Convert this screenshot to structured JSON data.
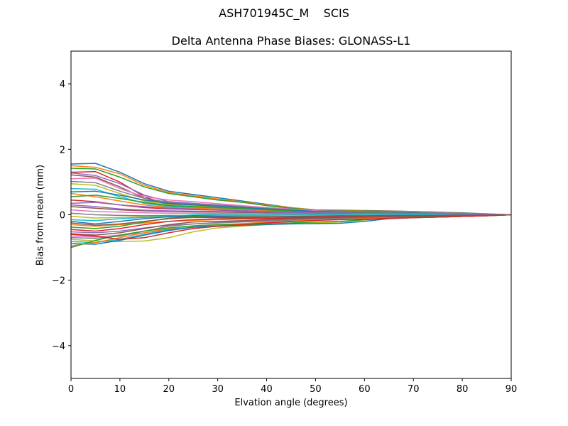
{
  "chart_data": {
    "type": "line",
    "suptitle": "ASH701945C_M    SCIS",
    "title": "Delta Antenna Phase Biases: GLONASS-L1",
    "xlabel": "Elvation angle (degrees)",
    "ylabel": "Bias from mean (mm)",
    "xlim": [
      0,
      90
    ],
    "ylim": [
      -5,
      5
    ],
    "xticks": [
      0,
      10,
      20,
      30,
      40,
      50,
      60,
      70,
      80,
      90
    ],
    "yticks": [
      -4,
      -2,
      0,
      2,
      4
    ],
    "ytick_labels": [
      "−4",
      "−2",
      "0",
      "2",
      "4"
    ],
    "grid": false,
    "legend": "none",
    "colors": [
      "#1f77b4",
      "#ff7f0e",
      "#2ca02c",
      "#d62728",
      "#9467bd",
      "#8c564b",
      "#e377c2",
      "#7f7f7f",
      "#bcbd22",
      "#17becf"
    ],
    "x": [
      0,
      5,
      10,
      15,
      20,
      25,
      30,
      35,
      40,
      45,
      50,
      55,
      60,
      65,
      70,
      75,
      80,
      85,
      90
    ],
    "series": [
      {
        "values": [
          1.55,
          1.57,
          1.3,
          0.95,
          0.72,
          0.62,
          0.52,
          0.42,
          0.32,
          0.22,
          0.15,
          0.14,
          0.13,
          0.12,
          0.1,
          0.08,
          0.06,
          0.03,
          0.0
        ]
      },
      {
        "values": [
          1.5,
          1.45,
          1.25,
          0.9,
          0.68,
          0.58,
          0.48,
          0.4,
          0.3,
          0.22,
          0.14,
          0.13,
          0.12,
          0.11,
          0.1,
          0.08,
          0.05,
          0.03,
          0.0
        ]
      },
      {
        "values": [
          1.42,
          1.4,
          1.15,
          0.85,
          0.65,
          0.55,
          0.45,
          0.38,
          0.28,
          0.2,
          0.13,
          0.12,
          0.11,
          0.1,
          0.09,
          0.07,
          0.05,
          0.02,
          0.0
        ]
      },
      {
        "values": [
          1.3,
          1.32,
          1.0,
          0.55,
          0.3,
          0.28,
          0.26,
          0.24,
          0.2,
          0.16,
          0.12,
          0.1,
          0.09,
          0.08,
          0.07,
          0.06,
          0.04,
          0.02,
          0.0
        ]
      },
      {
        "values": [
          1.28,
          1.2,
          0.95,
          0.6,
          0.4,
          0.35,
          0.3,
          0.26,
          0.22,
          0.18,
          0.12,
          0.11,
          0.1,
          0.09,
          0.08,
          0.06,
          0.04,
          0.02,
          0.0
        ]
      },
      {
        "values": [
          1.22,
          1.15,
          0.85,
          0.5,
          0.32,
          0.28,
          0.25,
          0.22,
          0.18,
          0.15,
          0.1,
          0.09,
          0.08,
          0.08,
          0.07,
          0.05,
          0.04,
          0.02,
          0.0
        ]
      },
      {
        "values": [
          1.1,
          1.12,
          0.8,
          0.55,
          0.45,
          0.4,
          0.34,
          0.28,
          0.22,
          0.17,
          0.12,
          0.1,
          0.09,
          0.08,
          0.07,
          0.06,
          0.04,
          0.02,
          0.0
        ]
      },
      {
        "values": [
          1.02,
          0.98,
          0.72,
          0.5,
          0.38,
          0.32,
          0.28,
          0.24,
          0.2,
          0.15,
          0.1,
          0.09,
          0.08,
          0.07,
          0.06,
          0.05,
          0.03,
          0.02,
          0.0
        ]
      },
      {
        "values": [
          0.95,
          0.9,
          0.65,
          0.42,
          0.3,
          0.27,
          0.24,
          0.2,
          0.17,
          0.13,
          0.09,
          0.08,
          0.07,
          0.07,
          0.06,
          0.05,
          0.03,
          0.02,
          0.0
        ]
      },
      {
        "values": [
          0.8,
          0.78,
          0.55,
          0.35,
          0.25,
          0.22,
          0.2,
          0.18,
          0.15,
          0.12,
          0.08,
          0.07,
          0.06,
          0.06,
          0.05,
          0.04,
          0.03,
          0.01,
          0.0
        ]
      },
      {
        "values": [
          0.7,
          0.72,
          0.6,
          0.45,
          0.35,
          0.3,
          0.26,
          0.22,
          0.18,
          0.14,
          0.1,
          0.09,
          0.08,
          0.07,
          0.06,
          0.05,
          0.03,
          0.02,
          0.0
        ]
      },
      {
        "values": [
          0.65,
          0.55,
          0.42,
          0.3,
          0.22,
          0.2,
          0.18,
          0.16,
          0.13,
          0.1,
          0.07,
          0.06,
          0.06,
          0.05,
          0.05,
          0.04,
          0.02,
          0.01,
          0.0
        ]
      },
      {
        "values": [
          0.55,
          0.6,
          0.5,
          0.38,
          0.28,
          0.25,
          0.22,
          0.19,
          0.15,
          0.12,
          0.08,
          0.07,
          0.07,
          0.06,
          0.05,
          0.04,
          0.03,
          0.01,
          0.0
        ]
      },
      {
        "values": [
          0.45,
          0.4,
          0.3,
          0.22,
          0.18,
          0.16,
          0.14,
          0.12,
          0.1,
          0.08,
          0.06,
          0.05,
          0.05,
          0.04,
          0.04,
          0.03,
          0.02,
          0.01,
          0.0
        ]
      },
      {
        "values": [
          0.35,
          0.38,
          0.3,
          0.25,
          0.2,
          0.18,
          0.15,
          0.13,
          0.1,
          0.08,
          0.05,
          0.05,
          0.04,
          0.04,
          0.03,
          0.03,
          0.02,
          0.01,
          0.0
        ]
      },
      {
        "values": [
          0.25,
          0.2,
          0.15,
          0.12,
          0.1,
          0.09,
          0.08,
          0.07,
          0.06,
          0.05,
          0.04,
          0.04,
          0.03,
          0.03,
          0.03,
          0.02,
          0.02,
          0.01,
          0.0
        ]
      },
      {
        "values": [
          0.15,
          0.1,
          0.08,
          0.06,
          0.05,
          0.05,
          0.04,
          0.04,
          0.03,
          0.03,
          0.02,
          0.02,
          0.02,
          0.02,
          0.02,
          0.01,
          0.01,
          0.0,
          0.0
        ]
      },
      {
        "values": [
          0.05,
          0.0,
          -0.02,
          -0.03,
          -0.02,
          -0.02,
          -0.02,
          -0.02,
          -0.02,
          -0.01,
          -0.01,
          -0.01,
          -0.01,
          -0.01,
          -0.01,
          -0.01,
          0.0,
          0.0,
          0.0
        ]
      },
      {
        "values": [
          -0.05,
          -0.1,
          -0.08,
          -0.06,
          -0.05,
          -0.05,
          -0.04,
          -0.04,
          -0.04,
          -0.03,
          -0.03,
          -0.03,
          -0.02,
          -0.02,
          -0.02,
          -0.02,
          -0.01,
          -0.01,
          0.0
        ]
      },
      {
        "values": [
          -0.15,
          -0.18,
          -0.12,
          -0.08,
          -0.05,
          0.0,
          0.02,
          0.02,
          0.02,
          0.02,
          0.01,
          0.01,
          0.01,
          0.01,
          0.01,
          0.0,
          0.0,
          0.0,
          0.0
        ]
      },
      {
        "values": [
          -0.2,
          -0.28,
          -0.2,
          -0.12,
          -0.06,
          -0.03,
          -0.05,
          -0.06,
          -0.06,
          -0.05,
          -0.04,
          -0.03,
          -0.03,
          -0.02,
          -0.02,
          -0.02,
          -0.01,
          -0.01,
          0.0
        ]
      },
      {
        "values": [
          -0.3,
          -0.35,
          -0.3,
          -0.25,
          -0.2,
          -0.17,
          -0.15,
          -0.13,
          -0.11,
          -0.09,
          -0.07,
          -0.06,
          -0.05,
          -0.05,
          -0.04,
          -0.03,
          -0.02,
          -0.01,
          0.0
        ]
      },
      {
        "values": [
          -0.38,
          -0.42,
          -0.35,
          -0.22,
          -0.1,
          -0.05,
          -0.08,
          -0.1,
          -0.1,
          -0.09,
          -0.07,
          -0.06,
          -0.05,
          -0.05,
          -0.04,
          -0.03,
          -0.02,
          -0.01,
          0.0
        ]
      },
      {
        "values": [
          -0.45,
          -0.5,
          -0.42,
          -0.3,
          -0.2,
          -0.15,
          -0.12,
          -0.12,
          -0.11,
          -0.1,
          -0.08,
          -0.07,
          -0.06,
          -0.05,
          -0.04,
          -0.03,
          -0.02,
          -0.01,
          0.0
        ]
      },
      {
        "values": [
          -0.52,
          -0.55,
          -0.5,
          -0.4,
          -0.32,
          -0.28,
          -0.24,
          -0.2,
          -0.17,
          -0.14,
          -0.11,
          -0.1,
          -0.09,
          -0.08,
          -0.07,
          -0.05,
          -0.04,
          -0.02,
          0.0
        ]
      },
      {
        "values": [
          -0.58,
          -0.62,
          -0.55,
          -0.42,
          -0.3,
          -0.22,
          -0.2,
          -0.18,
          -0.15,
          -0.12,
          -0.1,
          -0.1,
          -0.09,
          -0.08,
          -0.07,
          -0.05,
          -0.04,
          -0.02,
          0.0
        ]
      },
      {
        "values": [
          -0.65,
          -0.68,
          -0.62,
          -0.55,
          -0.45,
          -0.38,
          -0.32,
          -0.27,
          -0.22,
          -0.18,
          -0.14,
          -0.12,
          -0.11,
          -0.1,
          -0.08,
          -0.07,
          -0.05,
          -0.03,
          0.0
        ]
      },
      {
        "values": [
          -0.7,
          -0.72,
          -0.65,
          -0.5,
          -0.35,
          -0.28,
          -0.25,
          -0.22,
          -0.19,
          -0.16,
          -0.13,
          -0.12,
          -0.1,
          -0.09,
          -0.08,
          -0.06,
          -0.05,
          -0.02,
          0.0
        ]
      },
      {
        "values": [
          -0.75,
          -0.8,
          -0.82,
          -0.8,
          -0.7,
          -0.52,
          -0.4,
          -0.35,
          -0.3,
          -0.27,
          -0.25,
          -0.22,
          -0.16,
          -0.1,
          -0.08,
          -0.07,
          -0.05,
          -0.03,
          0.0
        ]
      },
      {
        "values": [
          -0.82,
          -0.85,
          -0.75,
          -0.6,
          -0.45,
          -0.38,
          -0.33,
          -0.28,
          -0.24,
          -0.2,
          -0.16,
          -0.14,
          -0.12,
          -0.1,
          -0.09,
          -0.07,
          -0.05,
          -0.03,
          0.0
        ]
      },
      {
        "values": [
          -0.88,
          -0.9,
          -0.78,
          -0.62,
          -0.48,
          -0.38,
          -0.35,
          -0.32,
          -0.3,
          -0.28,
          -0.27,
          -0.26,
          -0.2,
          -0.12,
          -0.09,
          -0.07,
          -0.05,
          -0.03,
          0.0
        ]
      },
      {
        "values": [
          -0.95,
          -0.85,
          -0.7,
          -0.55,
          -0.42,
          -0.34,
          -0.3,
          -0.27,
          -0.23,
          -0.2,
          -0.16,
          -0.14,
          -0.12,
          -0.1,
          -0.09,
          -0.07,
          -0.05,
          -0.03,
          0.0
        ]
      },
      {
        "values": [
          -1.0,
          -0.78,
          -0.62,
          -0.5,
          -0.4,
          -0.34,
          -0.3,
          -0.3,
          -0.28,
          -0.25,
          -0.22,
          -0.2,
          -0.15,
          -0.1,
          -0.08,
          -0.06,
          -0.05,
          -0.03,
          0.0
        ]
      },
      {
        "values": [
          -0.6,
          -0.65,
          -0.75,
          -0.7,
          -0.55,
          -0.42,
          -0.35,
          -0.3,
          -0.25,
          -0.21,
          -0.17,
          -0.15,
          -0.13,
          -0.11,
          -0.09,
          -0.07,
          -0.05,
          -0.03,
          0.0
        ]
      },
      {
        "values": [
          0.3,
          0.25,
          0.18,
          0.14,
          0.12,
          0.11,
          0.1,
          0.09,
          0.08,
          0.07,
          0.06,
          0.06,
          0.05,
          0.05,
          0.04,
          0.04,
          0.03,
          0.01,
          0.0
        ]
      },
      {
        "values": [
          -0.25,
          -0.32,
          -0.28,
          -0.2,
          -0.12,
          -0.08,
          -0.08,
          -0.08,
          -0.07,
          -0.06,
          -0.05,
          -0.05,
          -0.04,
          -0.04,
          -0.03,
          -0.03,
          -0.02,
          -0.01,
          0.0
        ]
      }
    ]
  }
}
